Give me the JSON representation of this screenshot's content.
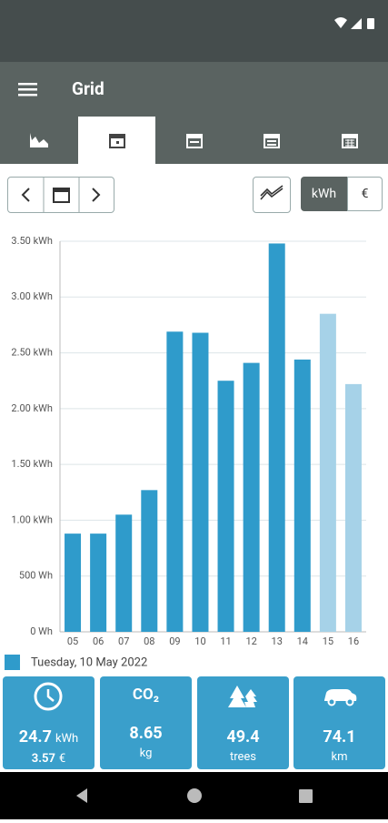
{
  "header": {
    "title": "Grid"
  },
  "unit_toggle": {
    "options": [
      "kWh",
      "€"
    ]
  },
  "chart_data": {
    "type": "bar",
    "categories": [
      "05",
      "06",
      "07",
      "08",
      "09",
      "10",
      "11",
      "12",
      "13",
      "14",
      "15",
      "16"
    ],
    "values": [
      0.88,
      0.88,
      1.05,
      1.27,
      2.69,
      2.68,
      2.25,
      2.41,
      3.48,
      2.44,
      2.85,
      2.22
    ],
    "colors": [
      "#2f9bcb",
      "#2f9bcb",
      "#2f9bcb",
      "#2f9bcb",
      "#2f9bcb",
      "#2f9bcb",
      "#2f9bcb",
      "#2f9bcb",
      "#2f9bcb",
      "#2f9bcb",
      "#a6d2e8",
      "#a6d2e8"
    ],
    "ylim": [
      0,
      3.5
    ],
    "yticks": [
      {
        "value": 0,
        "label": "0 Wh"
      },
      {
        "value": 0.5,
        "label": "500 Wh"
      },
      {
        "value": 1,
        "label": "1.00 kWh"
      },
      {
        "value": 1.5,
        "label": "1.50 kWh"
      },
      {
        "value": 2,
        "label": "2.00 kWh"
      },
      {
        "value": 2.5,
        "label": "2.50 kWh"
      },
      {
        "value": 3,
        "label": "3.00 kWh"
      },
      {
        "value": 3.5,
        "label": "3.50 kWh"
      }
    ],
    "grid": true,
    "legend": {
      "label": "Tuesday, 10 May 2022",
      "color": "#2f9bcb"
    }
  },
  "stats": [
    {
      "value": "24.7",
      "unit": "kWh",
      "sub_value": "3.57",
      "sub_unit": "€"
    },
    {
      "icon_label": "CO₂",
      "value": "8.65",
      "unit": "kg"
    },
    {
      "value": "49.4",
      "unit": "trees"
    },
    {
      "value": "74.1",
      "unit": "km"
    }
  ]
}
